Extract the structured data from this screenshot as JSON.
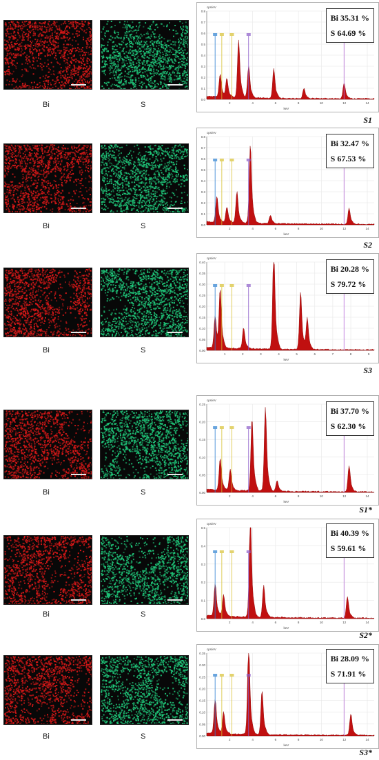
{
  "figure": {
    "rows": [
      {
        "sample": "S1",
        "bi_label": "Bi",
        "s_label": "S",
        "bi_text": "Bi 35.31 %",
        "s_text": "S 64.69 %",
        "axis_unit": "keV",
        "y_unit": "cps/eV",
        "y_ticks": [
          "0.0",
          "0.1",
          "0.2",
          "0.3",
          "0.4",
          "0.5",
          "0.6",
          "0.7",
          "0.8"
        ],
        "x_ticks": [
          "2",
          "4",
          "6",
          "8",
          "10",
          "12",
          "14"
        ]
      },
      {
        "sample": "S2",
        "bi_label": "Bi",
        "s_label": "S",
        "bi_text": "Bi 32.47 %",
        "s_text": "S 67.53 %",
        "axis_unit": "keV",
        "y_unit": "cps/eV",
        "y_ticks": [
          "0.0",
          "0.1",
          "0.2",
          "0.3",
          "0.4",
          "0.5",
          "0.6",
          "0.7",
          "0.8"
        ],
        "x_ticks": [
          "2",
          "4",
          "6",
          "8",
          "10",
          "12",
          "14"
        ]
      },
      {
        "sample": "S3",
        "bi_label": "Bi",
        "s_label": "S",
        "bi_text": "Bi 20.28 %",
        "s_text": "S 79.72 %",
        "axis_unit": "keV",
        "y_unit": "cps/eV",
        "y_ticks": [
          "0.00",
          "0.05",
          "0.10",
          "0.15",
          "0.20",
          "0.25",
          "0.30",
          "0.35",
          "0.40"
        ],
        "x_ticks": [
          "1",
          "2",
          "3",
          "4",
          "5",
          "6",
          "7",
          "8",
          "9"
        ]
      },
      {
        "sample": "S1*",
        "bi_label": "Bi",
        "s_label": "S",
        "bi_text": "Bi 37.70 %",
        "s_text": "S 62.30 %",
        "axis_unit": "keV",
        "y_unit": "cps/eV",
        "y_ticks": [
          "0.00",
          "0.05",
          "0.10",
          "0.15",
          "0.20",
          "0.25"
        ],
        "x_ticks": [
          "2",
          "4",
          "6",
          "8",
          "10",
          "12",
          "14"
        ]
      },
      {
        "sample": "S2*",
        "bi_label": "Bi",
        "s_label": "S",
        "bi_text": "Bi 40.39 %",
        "s_text": "S 59.61 %",
        "axis_unit": "keV",
        "y_unit": "cps/eV",
        "y_ticks": [
          "0.0",
          "0.1",
          "0.2",
          "0.3",
          "0.4",
          "0.5"
        ],
        "x_ticks": [
          "2",
          "4",
          "6",
          "8",
          "10",
          "12",
          "14"
        ]
      },
      {
        "sample": "S3*",
        "bi_label": "Bi",
        "s_label": "S",
        "bi_text": "Bi 28.09 %",
        "s_text": "S 71.91 %",
        "axis_unit": "keV",
        "y_unit": "cps/eV",
        "y_ticks": [
          "0.00",
          "0.05",
          "0.10",
          "0.15",
          "0.20",
          "0.25",
          "0.30",
          "0.35"
        ],
        "x_ticks": [
          "2",
          "4",
          "6",
          "8",
          "10",
          "12",
          "14"
        ]
      }
    ],
    "colors": {
      "bi_map": "#d81818",
      "s_map": "#1fc77a",
      "spectrum": "#c01010",
      "marker_s": "#8a5ac8",
      "marker_bi": "#b86ad8"
    }
  }
}
